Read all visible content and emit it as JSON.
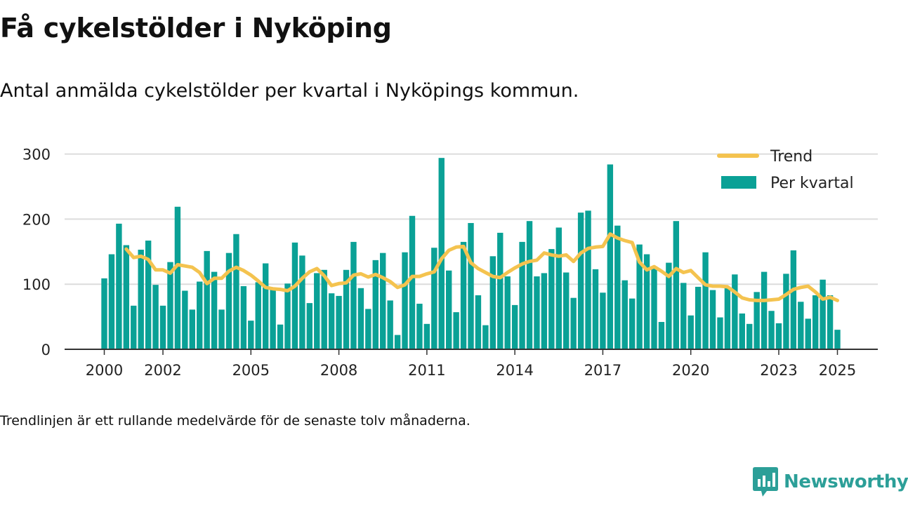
{
  "header": {
    "title": "Få cykelstölder i Nyköping",
    "subtitle": "Antal anmälda cykelstölder per kvartal i Nyköpings kommun."
  },
  "footer": {
    "note": "Trendlinjen är ett rullande medelvärde för de senaste tolv månaderna.",
    "brand": "Newsworthy"
  },
  "colors": {
    "bar": "#0aa196",
    "trend": "#f4c34f",
    "grid": "#dcdcdc",
    "axis": "#333333",
    "brand": "#2c9f98"
  },
  "chart_data": {
    "type": "bar",
    "title": "",
    "xlabel": "",
    "ylabel": "",
    "ylim": [
      0,
      300
    ],
    "yticks": [
      0,
      100,
      200,
      300
    ],
    "xticks": [
      {
        "label": "2000",
        "x": 2000.0
      },
      {
        "label": "2002",
        "x": 2002.0
      },
      {
        "label": "2005",
        "x": 2005.0
      },
      {
        "label": "2008",
        "x": 2008.0
      },
      {
        "label": "2011",
        "x": 2011.0
      },
      {
        "label": "2014",
        "x": 2014.0
      },
      {
        "label": "2017",
        "x": 2017.0
      },
      {
        "label": "2020",
        "x": 2020.0
      },
      {
        "label": "2023",
        "x": 2023.0
      },
      {
        "label": "2025",
        "x": 2025.0
      }
    ],
    "grid": true,
    "legend_position": "top-right",
    "series": [
      {
        "name": "Per kvartal",
        "kind": "bar",
        "points": [
          {
            "q": "2000 Q1",
            "x": 2000.0,
            "y": 109
          },
          {
            "q": "2000 Q2",
            "x": 2000.25,
            "y": 146
          },
          {
            "q": "2000 Q3",
            "x": 2000.5,
            "y": 193
          },
          {
            "q": "2000 Q4",
            "x": 2000.75,
            "y": 160
          },
          {
            "q": "2001 Q1",
            "x": 2001.0,
            "y": 67
          },
          {
            "q": "2001 Q2",
            "x": 2001.25,
            "y": 153
          },
          {
            "q": "2001 Q3",
            "x": 2001.5,
            "y": 167
          },
          {
            "q": "2001 Q4",
            "x": 2001.75,
            "y": 99
          },
          {
            "q": "2002 Q1",
            "x": 2002.0,
            "y": 67
          },
          {
            "q": "2002 Q2",
            "x": 2002.25,
            "y": 134
          },
          {
            "q": "2002 Q3",
            "x": 2002.5,
            "y": 219
          },
          {
            "q": "2002 Q4",
            "x": 2002.75,
            "y": 90
          },
          {
            "q": "2003 Q1",
            "x": 2003.0,
            "y": 61
          },
          {
            "q": "2003 Q2",
            "x": 2003.25,
            "y": 104
          },
          {
            "q": "2003 Q3",
            "x": 2003.5,
            "y": 151
          },
          {
            "q": "2003 Q4",
            "x": 2003.75,
            "y": 119
          },
          {
            "q": "2004 Q1",
            "x": 2004.0,
            "y": 61
          },
          {
            "q": "2004 Q2",
            "x": 2004.25,
            "y": 148
          },
          {
            "q": "2004 Q3",
            "x": 2004.5,
            "y": 177
          },
          {
            "q": "2004 Q4",
            "x": 2004.75,
            "y": 97
          },
          {
            "q": "2005 Q1",
            "x": 2005.0,
            "y": 44
          },
          {
            "q": "2005 Q2",
            "x": 2005.25,
            "y": 103
          },
          {
            "q": "2005 Q3",
            "x": 2005.5,
            "y": 132
          },
          {
            "q": "2005 Q4",
            "x": 2005.75,
            "y": 93
          },
          {
            "q": "2006 Q1",
            "x": 2006.0,
            "y": 38
          },
          {
            "q": "2006 Q2",
            "x": 2006.25,
            "y": 101
          },
          {
            "q": "2006 Q3",
            "x": 2006.5,
            "y": 164
          },
          {
            "q": "2006 Q4",
            "x": 2006.75,
            "y": 144
          },
          {
            "q": "2007 Q1",
            "x": 2007.0,
            "y": 71
          },
          {
            "q": "2007 Q2",
            "x": 2007.25,
            "y": 117
          },
          {
            "q": "2007 Q3",
            "x": 2007.5,
            "y": 122
          },
          {
            "q": "2007 Q4",
            "x": 2007.75,
            "y": 86
          },
          {
            "q": "2008 Q1",
            "x": 2008.0,
            "y": 82
          },
          {
            "q": "2008 Q2",
            "x": 2008.25,
            "y": 122
          },
          {
            "q": "2008 Q3",
            "x": 2008.5,
            "y": 165
          },
          {
            "q": "2008 Q4",
            "x": 2008.75,
            "y": 94
          },
          {
            "q": "2009 Q1",
            "x": 2009.0,
            "y": 62
          },
          {
            "q": "2009 Q2",
            "x": 2009.25,
            "y": 137
          },
          {
            "q": "2009 Q3",
            "x": 2009.5,
            "y": 148
          },
          {
            "q": "2009 Q4",
            "x": 2009.75,
            "y": 75
          },
          {
            "q": "2010 Q1",
            "x": 2010.0,
            "y": 22
          },
          {
            "q": "2010 Q2",
            "x": 2010.25,
            "y": 149
          },
          {
            "q": "2010 Q3",
            "x": 2010.5,
            "y": 205
          },
          {
            "q": "2010 Q4",
            "x": 2010.75,
            "y": 70
          },
          {
            "q": "2011 Q1",
            "x": 2011.0,
            "y": 39
          },
          {
            "q": "2011 Q2",
            "x": 2011.25,
            "y": 156
          },
          {
            "q": "2011 Q3",
            "x": 2011.5,
            "y": 294
          },
          {
            "q": "2011 Q4",
            "x": 2011.75,
            "y": 121
          },
          {
            "q": "2012 Q1",
            "x": 2012.0,
            "y": 57
          },
          {
            "q": "2012 Q2",
            "x": 2012.25,
            "y": 165
          },
          {
            "q": "2012 Q3",
            "x": 2012.5,
            "y": 194
          },
          {
            "q": "2012 Q4",
            "x": 2012.75,
            "y": 83
          },
          {
            "q": "2013 Q1",
            "x": 2013.0,
            "y": 37
          },
          {
            "q": "2013 Q2",
            "x": 2013.25,
            "y": 143
          },
          {
            "q": "2013 Q3",
            "x": 2013.5,
            "y": 179
          },
          {
            "q": "2013 Q4",
            "x": 2013.75,
            "y": 112
          },
          {
            "q": "2014 Q1",
            "x": 2014.0,
            "y": 68
          },
          {
            "q": "2014 Q2",
            "x": 2014.25,
            "y": 165
          },
          {
            "q": "2014 Q3",
            "x": 2014.5,
            "y": 197
          },
          {
            "q": "2014 Q4",
            "x": 2014.75,
            "y": 112
          },
          {
            "q": "2015 Q1",
            "x": 2015.0,
            "y": 117
          },
          {
            "q": "2015 Q2",
            "x": 2015.25,
            "y": 154
          },
          {
            "q": "2015 Q3",
            "x": 2015.5,
            "y": 187
          },
          {
            "q": "2015 Q4",
            "x": 2015.75,
            "y": 118
          },
          {
            "q": "2016 Q1",
            "x": 2016.0,
            "y": 79
          },
          {
            "q": "2016 Q2",
            "x": 2016.25,
            "y": 210
          },
          {
            "q": "2016 Q3",
            "x": 2016.5,
            "y": 213
          },
          {
            "q": "2016 Q4",
            "x": 2016.75,
            "y": 123
          },
          {
            "q": "2017 Q1",
            "x": 2017.0,
            "y": 87
          },
          {
            "q": "2017 Q2",
            "x": 2017.25,
            "y": 284
          },
          {
            "q": "2017 Q3",
            "x": 2017.5,
            "y": 190
          },
          {
            "q": "2017 Q4",
            "x": 2017.75,
            "y": 106
          },
          {
            "q": "2018 Q1",
            "x": 2018.0,
            "y": 78
          },
          {
            "q": "2018 Q2",
            "x": 2018.25,
            "y": 161
          },
          {
            "q": "2018 Q3",
            "x": 2018.5,
            "y": 146
          },
          {
            "q": "2018 Q4",
            "x": 2018.75,
            "y": 125
          },
          {
            "q": "2019 Q1",
            "x": 2019.0,
            "y": 42
          },
          {
            "q": "2019 Q2",
            "x": 2019.25,
            "y": 133
          },
          {
            "q": "2019 Q3",
            "x": 2019.5,
            "y": 197
          },
          {
            "q": "2019 Q4",
            "x": 2019.75,
            "y": 102
          },
          {
            "q": "2020 Q1",
            "x": 2020.0,
            "y": 52
          },
          {
            "q": "2020 Q2",
            "x": 2020.25,
            "y": 96
          },
          {
            "q": "2020 Q3",
            "x": 2020.5,
            "y": 149
          },
          {
            "q": "2020 Q4",
            "x": 2020.75,
            "y": 91
          },
          {
            "q": "2021 Q1",
            "x": 2021.0,
            "y": 49
          },
          {
            "q": "2021 Q2",
            "x": 2021.25,
            "y": 94
          },
          {
            "q": "2021 Q3",
            "x": 2021.5,
            "y": 115
          },
          {
            "q": "2021 Q4",
            "x": 2021.75,
            "y": 55
          },
          {
            "q": "2022 Q1",
            "x": 2022.0,
            "y": 39
          },
          {
            "q": "2022 Q2",
            "x": 2022.25,
            "y": 88
          },
          {
            "q": "2022 Q3",
            "x": 2022.5,
            "y": 119
          },
          {
            "q": "2022 Q4",
            "x": 2022.75,
            "y": 59
          },
          {
            "q": "2023 Q1",
            "x": 2023.0,
            "y": 40
          },
          {
            "q": "2023 Q2",
            "x": 2023.25,
            "y": 116
          },
          {
            "q": "2023 Q3",
            "x": 2023.5,
            "y": 152
          },
          {
            "q": "2023 Q4",
            "x": 2023.75,
            "y": 73
          },
          {
            "q": "2024 Q1",
            "x": 2024.0,
            "y": 47
          },
          {
            "q": "2024 Q2",
            "x": 2024.25,
            "y": 83
          },
          {
            "q": "2024 Q3",
            "x": 2024.5,
            "y": 107
          },
          {
            "q": "2024 Q4",
            "x": 2024.75,
            "y": 83
          },
          {
            "q": "2025 Q1",
            "x": 2025.0,
            "y": 30
          }
        ]
      },
      {
        "name": "Trend",
        "kind": "line",
        "points": [
          {
            "x": 2000.75,
            "y": 154
          },
          {
            "x": 2001.0,
            "y": 141
          },
          {
            "x": 2001.25,
            "y": 143
          },
          {
            "x": 2001.5,
            "y": 138
          },
          {
            "x": 2001.75,
            "y": 122
          },
          {
            "x": 2002.0,
            "y": 122
          },
          {
            "x": 2002.25,
            "y": 117
          },
          {
            "x": 2002.5,
            "y": 130
          },
          {
            "x": 2002.75,
            "y": 128
          },
          {
            "x": 2003.0,
            "y": 126
          },
          {
            "x": 2003.25,
            "y": 118
          },
          {
            "x": 2003.5,
            "y": 101
          },
          {
            "x": 2003.75,
            "y": 109
          },
          {
            "x": 2004.0,
            "y": 109
          },
          {
            "x": 2004.25,
            "y": 120
          },
          {
            "x": 2004.5,
            "y": 126
          },
          {
            "x": 2004.75,
            "y": 121
          },
          {
            "x": 2005.0,
            "y": 114
          },
          {
            "x": 2005.25,
            "y": 105
          },
          {
            "x": 2005.5,
            "y": 95
          },
          {
            "x": 2005.75,
            "y": 93
          },
          {
            "x": 2006.0,
            "y": 92
          },
          {
            "x": 2006.25,
            "y": 90
          },
          {
            "x": 2006.5,
            "y": 97
          },
          {
            "x": 2006.75,
            "y": 109
          },
          {
            "x": 2007.0,
            "y": 119
          },
          {
            "x": 2007.25,
            "y": 124
          },
          {
            "x": 2007.5,
            "y": 113
          },
          {
            "x": 2007.75,
            "y": 98
          },
          {
            "x": 2008.0,
            "y": 101
          },
          {
            "x": 2008.25,
            "y": 102
          },
          {
            "x": 2008.5,
            "y": 114
          },
          {
            "x": 2008.75,
            "y": 116
          },
          {
            "x": 2009.0,
            "y": 111
          },
          {
            "x": 2009.25,
            "y": 115
          },
          {
            "x": 2009.5,
            "y": 110
          },
          {
            "x": 2009.75,
            "y": 104
          },
          {
            "x": 2010.0,
            "y": 95
          },
          {
            "x": 2010.25,
            "y": 99
          },
          {
            "x": 2010.5,
            "y": 112
          },
          {
            "x": 2010.75,
            "y": 112
          },
          {
            "x": 2011.0,
            "y": 116
          },
          {
            "x": 2011.25,
            "y": 119
          },
          {
            "x": 2011.5,
            "y": 139
          },
          {
            "x": 2011.75,
            "y": 152
          },
          {
            "x": 2012.0,
            "y": 157
          },
          {
            "x": 2012.25,
            "y": 158
          },
          {
            "x": 2012.5,
            "y": 133
          },
          {
            "x": 2012.75,
            "y": 124
          },
          {
            "x": 2013.0,
            "y": 118
          },
          {
            "x": 2013.25,
            "y": 112
          },
          {
            "x": 2013.5,
            "y": 110
          },
          {
            "x": 2013.75,
            "y": 118
          },
          {
            "x": 2014.0,
            "y": 125
          },
          {
            "x": 2014.25,
            "y": 131
          },
          {
            "x": 2014.5,
            "y": 135
          },
          {
            "x": 2014.75,
            "y": 137
          },
          {
            "x": 2015.0,
            "y": 148
          },
          {
            "x": 2015.25,
            "y": 145
          },
          {
            "x": 2015.5,
            "y": 143
          },
          {
            "x": 2015.75,
            "y": 145
          },
          {
            "x": 2016.0,
            "y": 135
          },
          {
            "x": 2016.25,
            "y": 148
          },
          {
            "x": 2016.5,
            "y": 155
          },
          {
            "x": 2016.75,
            "y": 157
          },
          {
            "x": 2017.0,
            "y": 158
          },
          {
            "x": 2017.25,
            "y": 177
          },
          {
            "x": 2017.5,
            "y": 171
          },
          {
            "x": 2017.75,
            "y": 167
          },
          {
            "x": 2018.0,
            "y": 164
          },
          {
            "x": 2018.25,
            "y": 134
          },
          {
            "x": 2018.5,
            "y": 122
          },
          {
            "x": 2018.75,
            "y": 127
          },
          {
            "x": 2019.0,
            "y": 120
          },
          {
            "x": 2019.25,
            "y": 112
          },
          {
            "x": 2019.5,
            "y": 124
          },
          {
            "x": 2019.75,
            "y": 118
          },
          {
            "x": 2020.0,
            "y": 121
          },
          {
            "x": 2020.25,
            "y": 110
          },
          {
            "x": 2020.5,
            "y": 99
          },
          {
            "x": 2020.75,
            "y": 97
          },
          {
            "x": 2021.0,
            "y": 97
          },
          {
            "x": 2021.25,
            "y": 96
          },
          {
            "x": 2021.5,
            "y": 88
          },
          {
            "x": 2021.75,
            "y": 79
          },
          {
            "x": 2022.0,
            "y": 76
          },
          {
            "x": 2022.25,
            "y": 75
          },
          {
            "x": 2022.5,
            "y": 75
          },
          {
            "x": 2022.75,
            "y": 76
          },
          {
            "x": 2023.0,
            "y": 77
          },
          {
            "x": 2023.25,
            "y": 84
          },
          {
            "x": 2023.5,
            "y": 92
          },
          {
            "x": 2023.75,
            "y": 95
          },
          {
            "x": 2024.0,
            "y": 97
          },
          {
            "x": 2024.25,
            "y": 88
          },
          {
            "x": 2024.5,
            "y": 77
          },
          {
            "x": 2024.75,
            "y": 80
          },
          {
            "x": 2025.0,
            "y": 75
          }
        ]
      }
    ]
  }
}
